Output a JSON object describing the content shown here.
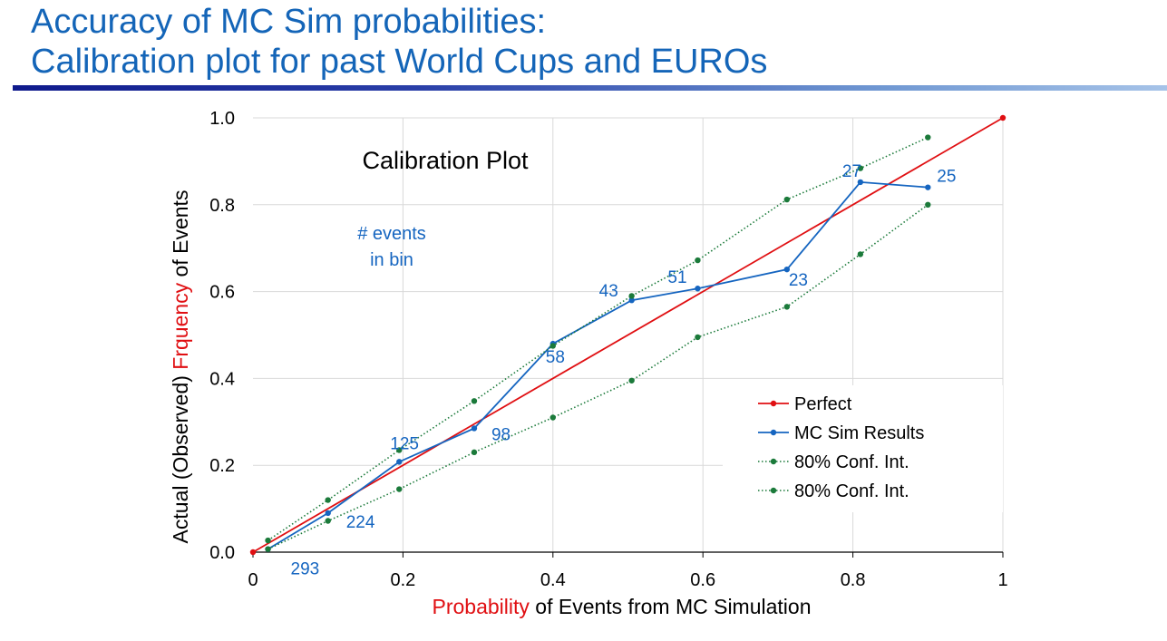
{
  "slide": {
    "title_line1": "Accuracy of MC Sim probabilities:",
    "title_line2": "Calibration plot for past World Cups and EUROs"
  },
  "colors": {
    "title": "#1465b8",
    "perfect": "#e00f12",
    "mc": "#1565c0",
    "conf": "#1b7a3a",
    "count_labels": "#1565c0",
    "grid": "#d9d9d9"
  },
  "chart_data": {
    "type": "line",
    "title": "Calibration Plot",
    "annotation": [
      "# events",
      "in bin"
    ],
    "xlabel_parts": [
      {
        "text": "Probability",
        "color": "#e00f12"
      },
      {
        "text": " of Events from MC Simulation",
        "color": "#000000"
      }
    ],
    "ylabel_parts": [
      {
        "text": "Actual (Observed) ",
        "color": "#000000"
      },
      {
        "text": "Frquency",
        "color": "#e00f12"
      },
      {
        "text": " of Events",
        "color": "#000000"
      }
    ],
    "xlim": [
      0,
      1
    ],
    "ylim": [
      0,
      1
    ],
    "xticks": [
      0,
      0.2,
      0.4,
      0.6,
      0.8,
      1
    ],
    "xtick_labels": [
      "0",
      "0.2",
      "0.4",
      "0.6",
      "0.8",
      "1"
    ],
    "yticks": [
      0,
      0.2,
      0.4,
      0.6,
      0.8,
      1
    ],
    "ytick_labels": [
      "0.0",
      "0.2",
      "0.4",
      "0.6",
      "0.8",
      "1.0"
    ],
    "grid": true,
    "legend_position": "bottom-right",
    "series": [
      {
        "name": "Perfect",
        "style": "solid",
        "color": "#e00f12",
        "x": [
          0,
          1
        ],
        "y": [
          0,
          1
        ]
      },
      {
        "name": "MC Sim Results",
        "style": "solid",
        "color": "#1565c0",
        "x": [
          0.02,
          0.1,
          0.195,
          0.295,
          0.4,
          0.505,
          0.593,
          0.712,
          0.81,
          0.9
        ],
        "y": [
          0.007,
          0.09,
          0.208,
          0.285,
          0.48,
          0.58,
          0.607,
          0.651,
          0.852,
          0.84
        ],
        "labels": [
          "293",
          "224",
          "125",
          "98",
          "58",
          "43",
          "51",
          "23",
          "27",
          "25"
        ]
      },
      {
        "name": "80% Conf. Int.",
        "style": "dotted",
        "color": "#1b7a3a",
        "x": [
          0.02,
          0.1,
          0.195,
          0.295,
          0.4,
          0.505,
          0.593,
          0.712,
          0.81,
          0.9
        ],
        "y": [
          0.027,
          0.12,
          0.235,
          0.348,
          0.475,
          0.59,
          0.672,
          0.812,
          0.884,
          0.955
        ]
      },
      {
        "name": "80% Conf. Int.",
        "style": "dotted",
        "color": "#1b7a3a",
        "x": [
          0.02,
          0.1,
          0.195,
          0.295,
          0.4,
          0.505,
          0.593,
          0.712,
          0.81,
          0.9
        ],
        "y": [
          0.007,
          0.072,
          0.145,
          0.23,
          0.31,
          0.395,
          0.495,
          0.565,
          0.686,
          0.8
        ]
      }
    ]
  }
}
